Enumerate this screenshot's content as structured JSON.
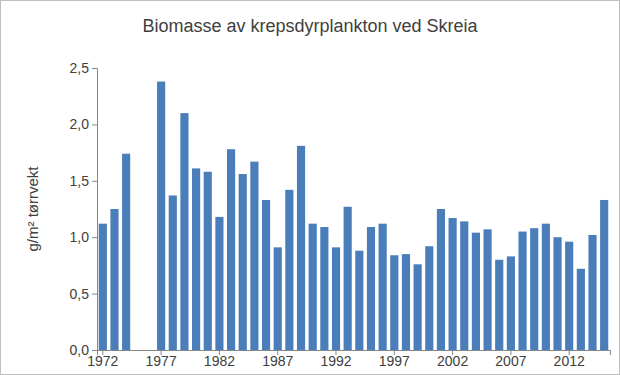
{
  "chart_data": {
    "type": "bar",
    "title": "Biomasse av krepsdyrplankton ved Skreia",
    "y_label": "g/m² tørrvekt",
    "categories": [
      "1972",
      null,
      null,
      null,
      null,
      "1977",
      null,
      null,
      null,
      null,
      "1982",
      null,
      null,
      null,
      null,
      "1987",
      null,
      null,
      null,
      null,
      "1992",
      null,
      null,
      null,
      null,
      "1997",
      null,
      null,
      null,
      null,
      "2002",
      null,
      null,
      null,
      null,
      "2007",
      null,
      null,
      null,
      null,
      "2012",
      null,
      null,
      null
    ],
    "values": [
      1.12,
      1.25,
      1.74,
      null,
      null,
      2.38,
      1.37,
      2.1,
      1.61,
      1.58,
      1.18,
      1.78,
      1.56,
      1.67,
      1.33,
      0.91,
      1.42,
      1.81,
      1.12,
      1.09,
      0.91,
      1.27,
      0.88,
      1.09,
      1.12,
      0.84,
      0.85,
      0.76,
      0.92,
      1.25,
      1.17,
      1.14,
      1.04,
      1.07,
      0.8,
      0.83,
      1.05,
      1.08,
      1.12,
      1.0,
      0.96,
      0.72,
      1.02,
      1.33
    ],
    "color": "#4a7ebb",
    "ylim": [
      0,
      2.5
    ],
    "yticks": [
      {
        "value": 0,
        "label": "0,0"
      },
      {
        "value": 0.5,
        "label": "0,5"
      },
      {
        "value": 1,
        "label": "1,0"
      },
      {
        "value": 1.5,
        "label": "1,5"
      },
      {
        "value": 2,
        "label": "2,0"
      },
      {
        "value": 2.5,
        "label": "2,5"
      }
    ],
    "grid": false
  }
}
